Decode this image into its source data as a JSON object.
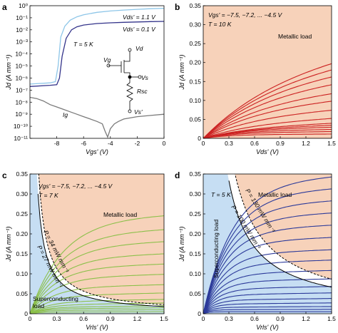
{
  "chart_data": [
    {
      "panel": "a",
      "type": "line",
      "xlabel": "Vgs' (V)",
      "ylabel": "Jd (A mm⁻¹)",
      "xlim": [
        -10,
        0
      ],
      "ylim_log10": [
        -11,
        0
      ],
      "yscale": "log",
      "xticks": [
        "-8",
        "-6",
        "-4",
        "-2",
        "0"
      ],
      "yticks": [
        "10⁻¹¹",
        "10⁻¹⁰",
        "10⁻⁹",
        "10⁻⁸",
        "10⁻⁷",
        "10⁻⁶",
        "10⁻⁵",
        "10⁻⁴",
        "10⁻³",
        "10⁻²",
        "10⁻¹",
        "10⁰"
      ],
      "annotations": [
        "Vds' = 1.1 V",
        "Vds' = 0.1 V",
        "T = 5 K",
        "Vd",
        "Vg",
        "Vs",
        "Rsc",
        "Vs'",
        "Ig"
      ],
      "series": [
        {
          "name": "Vds' = 1.1 V",
          "color": "#8ec6e8",
          "x": [
            -10,
            -8.5,
            -8.1,
            -7.9,
            -7.7,
            -7.4,
            -7.0,
            -6.5,
            -6.0,
            -5.0,
            -4.0,
            -3.0,
            -2.0,
            -1.0,
            0
          ],
          "y": [
            -6.5,
            -6.4,
            -6.3,
            -5.0,
            -2.6,
            -1.7,
            -1.2,
            -0.92,
            -0.75,
            -0.55,
            -0.44,
            -0.36,
            -0.3,
            -0.25,
            -0.21
          ]
        },
        {
          "name": "Vds' = 0.1 V",
          "color": "#33338a",
          "x": [
            -10,
            -8.5,
            -8.0,
            -7.8,
            -7.6,
            -7.3,
            -6.9,
            -6.5,
            -6.0,
            -5.0,
            -4.0,
            -3.0,
            -2.0,
            -1.0,
            0
          ],
          "y": [
            -6.7,
            -6.6,
            -6.55,
            -6.0,
            -4.2,
            -2.7,
            -2.0,
            -1.75,
            -1.6,
            -1.48,
            -1.42,
            -1.38,
            -1.35,
            -1.32,
            -1.3
          ]
        },
        {
          "name": "Ig",
          "color": "#7a7a7a",
          "x": [
            -10,
            -9.5,
            -9.0,
            -8.5,
            -8.0,
            -7.5,
            -7.0,
            -6.5,
            -6.0,
            -5.5,
            -5.0,
            -4.6,
            -4.4,
            -4.2,
            -4.0,
            -3.7,
            -3.4,
            -3.0,
            -2.0,
            -1.0,
            0
          ],
          "y": [
            -7.6,
            -7.7,
            -7.9,
            -8.2,
            -8.4,
            -8.6,
            -8.8,
            -9.0,
            -9.2,
            -9.4,
            -9.6,
            -9.8,
            -10.4,
            -10.9,
            -10.2,
            -9.8,
            -9.6,
            -9.4,
            -9.2,
            -9.1,
            -9.0
          ]
        }
      ]
    },
    {
      "panel": "b",
      "type": "line",
      "xlabel": "Vds' (V)",
      "ylabel": "Jd (A mm⁻¹)",
      "xlim": [
        0,
        1.5
      ],
      "ylim": [
        0,
        0.35
      ],
      "xticks": [
        "0",
        "0.3",
        "0.6",
        "0.9",
        "1.2",
        "1.5"
      ],
      "yticks": [
        "0",
        "0.05",
        "0.10",
        "0.15",
        "0.20",
        "0.25",
        "0.30",
        "0.35"
      ],
      "annotations": [
        "Vgs' = −7.5, −7.2, ... −4.5 V",
        "T = 10 K",
        "Metallic load"
      ],
      "color": "#cc2222",
      "region_color": "#f7d2ba",
      "curves": {
        "x": [
          0,
          0.1,
          0.2,
          0.3,
          0.45,
          0.6,
          0.75,
          0.9,
          1.05,
          1.2,
          1.35,
          1.5
        ],
        "sat": [
          0.0,
          0.01,
          0.015,
          0.019,
          0.023,
          0.026,
          0.029,
          0.04,
          0.061,
          0.085,
          0.105,
          0.13,
          0.152,
          0.172,
          0.19
        ]
      }
    },
    {
      "panel": "c",
      "type": "line",
      "xlabel": "Vrls' (V)",
      "ylabel": "Jd (A mm⁻¹)",
      "xlim": [
        0,
        1.5
      ],
      "ylim": [
        0,
        0.35
      ],
      "xticks": [
        "0",
        "0.3",
        "0.6",
        "0.9",
        "1.2",
        "1.5"
      ],
      "yticks": [
        "0",
        "0.05",
        "0.10",
        "0.15",
        "0.20",
        "0.25",
        "0.30",
        "0.35"
      ],
      "annotations": [
        "Vgs' = −7.5, −7.2, ... −4.5 V",
        "T = 7 K",
        "Metallic load",
        "P = 34 mW mm⁻¹",
        "P = 27 mW mm⁻¹",
        "Superconducting load"
      ],
      "color": "#8cc04a",
      "region_color": "#f7d2ba",
      "sc_color": "#c6def3",
      "power_lines_mW_per_mm": [
        34,
        27
      ],
      "curves": {
        "sat": [
          0.0,
          0.004,
          0.008,
          0.012,
          0.016,
          0.022,
          0.03,
          0.045,
          0.065,
          0.09,
          0.115,
          0.14,
          0.17,
          0.2,
          0.235
        ]
      }
    },
    {
      "panel": "d",
      "type": "line",
      "xlabel": "Vrls' (V)",
      "ylabel": "Jd (A mm⁻¹)",
      "xlim": [
        0,
        1.5
      ],
      "ylim": [
        0,
        0.35
      ],
      "xticks": [
        "0",
        "0.3",
        "0.6",
        "0.9",
        "1.2",
        "1.5"
      ],
      "yticks": [
        "0",
        "0.05",
        "0.10",
        "0.15",
        "0.20",
        "0.25",
        "0.30",
        "0.35"
      ],
      "annotations": [
        "T = 5 K",
        "Metallic load",
        "P = 130 mW mm⁻¹",
        "P = 100 mW mm⁻¹",
        "Superconducting load"
      ],
      "color": "#2c3a9a",
      "region_color": "#f7d2ba",
      "sc_color": "#c6def3",
      "power_lines_mW_per_mm": [
        130,
        100
      ],
      "curves": {
        "sat": [
          0.005,
          0.01,
          0.016,
          0.024,
          0.034,
          0.047,
          0.062,
          0.08,
          0.1,
          0.125,
          0.15,
          0.18,
          0.21,
          0.24,
          0.27,
          0.3,
          0.33
        ]
      }
    }
  ]
}
